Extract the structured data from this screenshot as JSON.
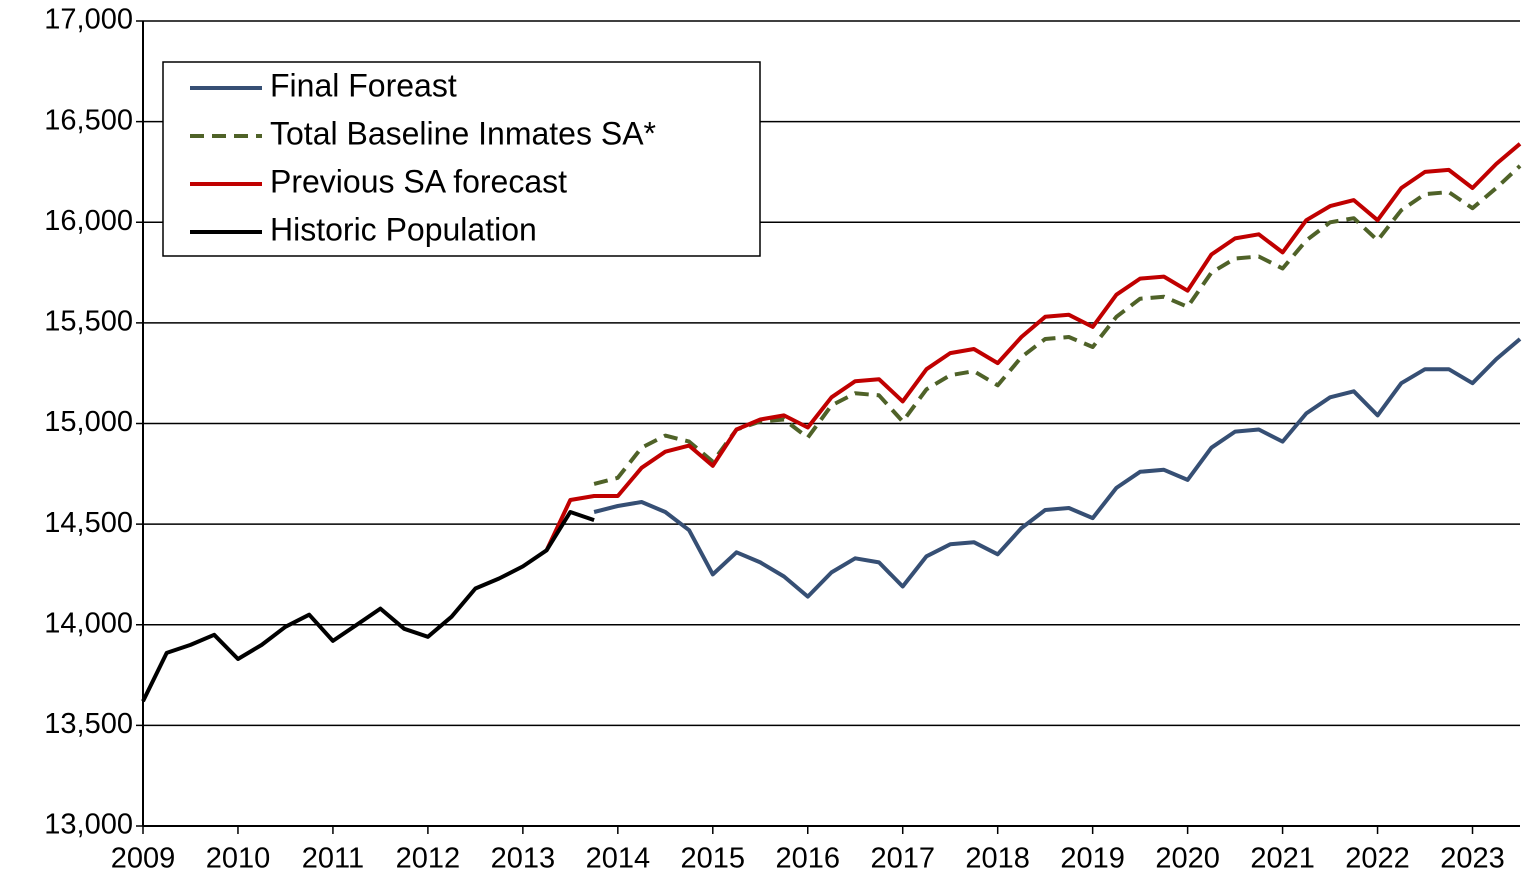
{
  "chart_data": {
    "type": "line",
    "x": [
      2009,
      2009.25,
      2009.5,
      2009.75,
      2010,
      2010.25,
      2010.5,
      2010.75,
      2011,
      2011.25,
      2011.5,
      2011.75,
      2012,
      2012.25,
      2012.5,
      2012.75,
      2013,
      2013.25,
      2013.5,
      2013.75,
      2014,
      2014.25,
      2014.5,
      2014.75,
      2015,
      2015.25,
      2015.5,
      2015.75,
      2016,
      2016.25,
      2016.5,
      2016.75,
      2017,
      2017.25,
      2017.5,
      2017.75,
      2018,
      2018.25,
      2018.5,
      2018.75,
      2019,
      2019.25,
      2019.5,
      2019.75,
      2020,
      2020.25,
      2020.5,
      2020.75,
      2021,
      2021.25,
      2021.5,
      2021.75,
      2022,
      2022.25,
      2022.5,
      2022.75,
      2023,
      2023.25,
      2023.5
    ],
    "series": [
      {
        "name": "Final Foreast",
        "color": "#364f74",
        "dash": false,
        "values": [
          null,
          null,
          null,
          null,
          null,
          null,
          null,
          null,
          null,
          null,
          null,
          null,
          null,
          null,
          null,
          null,
          null,
          null,
          null,
          14560,
          14590,
          14610,
          14560,
          14470,
          14250,
          14360,
          14310,
          14240,
          14140,
          14260,
          14330,
          14310,
          14190,
          14340,
          14400,
          14410,
          14350,
          14480,
          14570,
          14580,
          14530,
          14680,
          14760,
          14770,
          14720,
          14880,
          14960,
          14970,
          14910,
          15050,
          15130,
          15160,
          15040,
          15200,
          15270,
          15270,
          15200,
          15320,
          15420
        ]
      },
      {
        "name": "Total Baseline Inmates SA*",
        "color": "#4f6228",
        "dash": true,
        "values": [
          null,
          null,
          null,
          null,
          null,
          null,
          null,
          null,
          null,
          null,
          null,
          null,
          null,
          null,
          null,
          null,
          null,
          null,
          null,
          14700,
          14730,
          14880,
          14940,
          14910,
          14810,
          14970,
          15010,
          15020,
          14930,
          15090,
          15150,
          15140,
          15010,
          15170,
          15240,
          15260,
          15190,
          15330,
          15420,
          15430,
          15380,
          15530,
          15620,
          15630,
          15580,
          15750,
          15820,
          15830,
          15770,
          15910,
          16000,
          16020,
          15910,
          16060,
          16140,
          16150,
          16070,
          16170,
          16280
        ]
      },
      {
        "name": "Previous SA forecast",
        "color": "#c00000",
        "dash": false,
        "values": [
          null,
          null,
          null,
          null,
          null,
          null,
          null,
          null,
          null,
          null,
          null,
          null,
          null,
          null,
          null,
          null,
          null,
          14370,
          14620,
          14640,
          14640,
          14780,
          14860,
          14890,
          14790,
          14970,
          15020,
          15040,
          14980,
          15130,
          15210,
          15220,
          15110,
          15270,
          15350,
          15370,
          15300,
          15430,
          15530,
          15540,
          15480,
          15640,
          15720,
          15730,
          15660,
          15840,
          15920,
          15940,
          15850,
          16010,
          16080,
          16110,
          16010,
          16170,
          16250,
          16260,
          16170,
          16290,
          16390
        ]
      },
      {
        "name": "Historic Population",
        "color": "#000000",
        "dash": false,
        "values": [
          13620,
          13860,
          13900,
          13950,
          13830,
          13900,
          13990,
          14050,
          13920,
          14000,
          14080,
          13980,
          13940,
          14040,
          14180,
          14230,
          14290,
          14370,
          14560,
          14520,
          null,
          null,
          null,
          null,
          null,
          null,
          null,
          null,
          null,
          null,
          null,
          null,
          null,
          null,
          null,
          null,
          null,
          null,
          null,
          null,
          null,
          null,
          null,
          null,
          null,
          null,
          null,
          null,
          null,
          null,
          null,
          null,
          null,
          null,
          null,
          null,
          null,
          null,
          null
        ]
      }
    ],
    "xlim": [
      2009,
      2023.5
    ],
    "xticks": [
      2009,
      2010,
      2011,
      2012,
      2013,
      2014,
      2015,
      2016,
      2017,
      2018,
      2019,
      2020,
      2021,
      2022,
      2023
    ],
    "ylim": [
      13000,
      17000
    ],
    "yticks": [
      {
        "value": 13000,
        "label": "13,000"
      },
      {
        "value": 13500,
        "label": "13,500"
      },
      {
        "value": 14000,
        "label": "14,000"
      },
      {
        "value": 14500,
        "label": "14,500"
      },
      {
        "value": 15000,
        "label": "15,000"
      },
      {
        "value": 15500,
        "label": "15,500"
      },
      {
        "value": 16000,
        "label": "16,000"
      },
      {
        "value": 16500,
        "label": "16,500"
      },
      {
        "value": 17000,
        "label": "17,000"
      }
    ],
    "grid": true,
    "legend": "upper left"
  }
}
